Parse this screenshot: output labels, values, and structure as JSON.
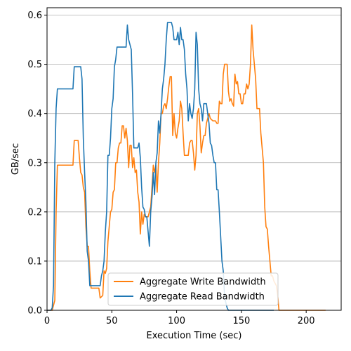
{
  "chart_data": {
    "type": "line",
    "xlabel": "Execution Time (sec)",
    "ylabel": "GB/sec",
    "xlim": [
      0,
      227
    ],
    "ylim": [
      0,
      0.615
    ],
    "xticks": [
      0,
      50,
      100,
      150,
      200
    ],
    "xtick_labels": [
      "0",
      "50",
      "100",
      "150",
      "200"
    ],
    "yticks": [
      0,
      0.1,
      0.2,
      0.3,
      0.4,
      0.5,
      0.6
    ],
    "ytick_labels": [
      "0.0",
      "0.1",
      "0.2",
      "0.3",
      "0.4",
      "0.5",
      "0.6"
    ],
    "grid": "horizontal",
    "legend_position": "lower-center",
    "series": [
      {
        "name": "Aggregate Write Bandwidth",
        "color": "#ff7f0e",
        "points": [
          [
            0,
            0
          ],
          [
            2,
            0
          ],
          [
            4,
            0
          ],
          [
            6,
            0.02
          ],
          [
            7,
            0.2
          ],
          [
            8,
            0.295
          ],
          [
            10,
            0.295
          ],
          [
            14,
            0.295
          ],
          [
            18,
            0.295
          ],
          [
            20,
            0.295
          ],
          [
            21,
            0.345
          ],
          [
            24,
            0.345
          ],
          [
            25,
            0.31
          ],
          [
            26,
            0.28
          ],
          [
            27,
            0.275
          ],
          [
            28,
            0.25
          ],
          [
            29,
            0.24
          ],
          [
            30,
            0.17
          ],
          [
            31,
            0.13
          ],
          [
            32,
            0.13
          ],
          [
            33,
            0.08
          ],
          [
            34,
            0.045
          ],
          [
            36,
            0.045
          ],
          [
            40,
            0.045
          ],
          [
            41,
            0.025
          ],
          [
            43,
            0.03
          ],
          [
            44,
            0.08
          ],
          [
            45,
            0.075
          ],
          [
            46,
            0.085
          ],
          [
            47,
            0.14
          ],
          [
            48,
            0.17
          ],
          [
            49,
            0.2
          ],
          [
            50,
            0.205
          ],
          [
            51,
            0.24
          ],
          [
            52,
            0.245
          ],
          [
            53,
            0.3
          ],
          [
            54,
            0.3
          ],
          [
            55,
            0.33
          ],
          [
            56,
            0.34
          ],
          [
            57,
            0.34
          ],
          [
            58,
            0.375
          ],
          [
            59,
            0.375
          ],
          [
            60,
            0.35
          ],
          [
            61,
            0.37
          ],
          [
            62,
            0.345
          ],
          [
            63,
            0.29
          ],
          [
            64,
            0.335
          ],
          [
            65,
            0.335
          ],
          [
            66,
            0.29
          ],
          [
            67,
            0.31
          ],
          [
            68,
            0.28
          ],
          [
            69,
            0.285
          ],
          [
            70,
            0.24
          ],
          [
            71,
            0.22
          ],
          [
            72,
            0.155
          ],
          [
            73,
            0.2
          ],
          [
            74,
            0.175
          ],
          [
            75,
            0.195
          ],
          [
            76,
            0.19
          ],
          [
            78,
            0.19
          ],
          [
            80,
            0.21
          ],
          [
            81,
            0.25
          ],
          [
            82,
            0.295
          ],
          [
            83,
            0.28
          ],
          [
            84,
            0.295
          ],
          [
            85,
            0.24
          ],
          [
            86,
            0.3
          ],
          [
            87,
            0.34
          ],
          [
            88,
            0.4
          ],
          [
            89,
            0.4
          ],
          [
            90,
            0.415
          ],
          [
            91,
            0.42
          ],
          [
            92,
            0.41
          ],
          [
            93,
            0.43
          ],
          [
            94,
            0.455
          ],
          [
            95,
            0.475
          ],
          [
            96,
            0.475
          ],
          [
            97,
            0.355
          ],
          [
            98,
            0.4
          ],
          [
            99,
            0.36
          ],
          [
            100,
            0.35
          ],
          [
            101,
            0.37
          ],
          [
            102,
            0.385
          ],
          [
            103,
            0.425
          ],
          [
            104,
            0.41
          ],
          [
            105,
            0.36
          ],
          [
            106,
            0.315
          ],
          [
            108,
            0.315
          ],
          [
            109,
            0.315
          ],
          [
            110,
            0.34
          ],
          [
            111,
            0.345
          ],
          [
            112,
            0.345
          ],
          [
            113,
            0.32
          ],
          [
            114,
            0.285
          ],
          [
            115,
            0.315
          ],
          [
            116,
            0.4
          ],
          [
            117,
            0.41
          ],
          [
            118,
            0.375
          ],
          [
            119,
            0.32
          ],
          [
            120,
            0.34
          ],
          [
            121,
            0.355
          ],
          [
            122,
            0.355
          ],
          [
            123,
            0.38
          ],
          [
            124,
            0.39
          ],
          [
            125,
            0.4
          ],
          [
            126,
            0.39
          ],
          [
            128,
            0.385
          ],
          [
            130,
            0.385
          ],
          [
            131,
            0.38
          ],
          [
            132,
            0.38
          ],
          [
            133,
            0.425
          ],
          [
            134,
            0.42
          ],
          [
            135,
            0.42
          ],
          [
            136,
            0.48
          ],
          [
            137,
            0.5
          ],
          [
            138,
            0.5
          ],
          [
            139,
            0.5
          ],
          [
            140,
            0.445
          ],
          [
            141,
            0.425
          ],
          [
            142,
            0.43
          ],
          [
            143,
            0.42
          ],
          [
            144,
            0.415
          ],
          [
            145,
            0.48
          ],
          [
            146,
            0.46
          ],
          [
            147,
            0.465
          ],
          [
            148,
            0.44
          ],
          [
            149,
            0.44
          ],
          [
            150,
            0.42
          ],
          [
            151,
            0.42
          ],
          [
            152,
            0.44
          ],
          [
            153,
            0.44
          ],
          [
            154,
            0.46
          ],
          [
            155,
            0.45
          ],
          [
            156,
            0.46
          ],
          [
            157,
            0.5
          ],
          [
            158,
            0.58
          ],
          [
            159,
            0.53
          ],
          [
            160,
            0.5
          ],
          [
            161,
            0.47
          ],
          [
            162,
            0.41
          ],
          [
            164,
            0.41
          ],
          [
            165,
            0.36
          ],
          [
            166,
            0.33
          ],
          [
            167,
            0.3
          ],
          [
            168,
            0.21
          ],
          [
            169,
            0.17
          ],
          [
            170,
            0.165
          ],
          [
            171,
            0.13
          ],
          [
            172,
            0.1
          ],
          [
            173,
            0.07
          ],
          [
            174,
            0.07
          ],
          [
            175,
            0.06
          ],
          [
            176,
            0.055
          ],
          [
            177,
            0.05
          ],
          [
            178,
            0.03
          ],
          [
            179,
            0
          ],
          [
            185,
            0
          ],
          [
            200,
            0
          ],
          [
            215,
            0
          ]
        ]
      },
      {
        "name": "Aggregate Read Bandwidth",
        "color": "#1f77b4",
        "points": [
          [
            0,
            0
          ],
          [
            3,
            0
          ],
          [
            4,
            0.005
          ],
          [
            5,
            0.05
          ],
          [
            6,
            0.3
          ],
          [
            7,
            0.41
          ],
          [
            8,
            0.45
          ],
          [
            10,
            0.45
          ],
          [
            15,
            0.45
          ],
          [
            18,
            0.45
          ],
          [
            20,
            0.45
          ],
          [
            21,
            0.495
          ],
          [
            25,
            0.495
          ],
          [
            26,
            0.495
          ],
          [
            27,
            0.47
          ],
          [
            28,
            0.35
          ],
          [
            29,
            0.28
          ],
          [
            30,
            0.22
          ],
          [
            31,
            0.12
          ],
          [
            32,
            0.1
          ],
          [
            33,
            0.05
          ],
          [
            35,
            0.05
          ],
          [
            40,
            0.05
          ],
          [
            41,
            0.05
          ],
          [
            42,
            0.07
          ],
          [
            43,
            0.08
          ],
          [
            44,
            0.1
          ],
          [
            45,
            0.16
          ],
          [
            46,
            0.2
          ],
          [
            47,
            0.315
          ],
          [
            48,
            0.315
          ],
          [
            49,
            0.35
          ],
          [
            50,
            0.41
          ],
          [
            51,
            0.43
          ],
          [
            52,
            0.495
          ],
          [
            53,
            0.51
          ],
          [
            54,
            0.535
          ],
          [
            56,
            0.535
          ],
          [
            58,
            0.535
          ],
          [
            60,
            0.535
          ],
          [
            61,
            0.535
          ],
          [
            62,
            0.58
          ],
          [
            63,
            0.55
          ],
          [
            64,
            0.54
          ],
          [
            65,
            0.53
          ],
          [
            66,
            0.44
          ],
          [
            67,
            0.33
          ],
          [
            68,
            0.33
          ],
          [
            69,
            0.33
          ],
          [
            70,
            0.33
          ],
          [
            71,
            0.34
          ],
          [
            72,
            0.31
          ],
          [
            73,
            0.25
          ],
          [
            74,
            0.21
          ],
          [
            75,
            0.205
          ],
          [
            76,
            0.19
          ],
          [
            77,
            0.19
          ],
          [
            78,
            0.16
          ],
          [
            79,
            0.13
          ],
          [
            80,
            0.2
          ],
          [
            81,
            0.23
          ],
          [
            82,
            0.28
          ],
          [
            83,
            0.235
          ],
          [
            84,
            0.3
          ],
          [
            85,
            0.32
          ],
          [
            86,
            0.385
          ],
          [
            87,
            0.36
          ],
          [
            88,
            0.4
          ],
          [
            89,
            0.45
          ],
          [
            90,
            0.47
          ],
          [
            91,
            0.5
          ],
          [
            92,
            0.55
          ],
          [
            93,
            0.585
          ],
          [
            94,
            0.585
          ],
          [
            95,
            0.585
          ],
          [
            96,
            0.585
          ],
          [
            97,
            0.575
          ],
          [
            98,
            0.55
          ],
          [
            99,
            0.55
          ],
          [
            100,
            0.55
          ],
          [
            101,
            0.565
          ],
          [
            102,
            0.54
          ],
          [
            103,
            0.575
          ],
          [
            104,
            0.55
          ],
          [
            105,
            0.55
          ],
          [
            106,
            0.53
          ],
          [
            107,
            0.48
          ],
          [
            108,
            0.45
          ],
          [
            109,
            0.385
          ],
          [
            110,
            0.42
          ],
          [
            111,
            0.4
          ],
          [
            112,
            0.39
          ],
          [
            113,
            0.41
          ],
          [
            114,
            0.45
          ],
          [
            115,
            0.565
          ],
          [
            116,
            0.54
          ],
          [
            117,
            0.45
          ],
          [
            118,
            0.42
          ],
          [
            119,
            0.41
          ],
          [
            120,
            0.385
          ],
          [
            121,
            0.42
          ],
          [
            122,
            0.42
          ],
          [
            123,
            0.42
          ],
          [
            124,
            0.4
          ],
          [
            125,
            0.38
          ],
          [
            126,
            0.34
          ],
          [
            127,
            0.335
          ],
          [
            128,
            0.315
          ],
          [
            129,
            0.3
          ],
          [
            130,
            0.3
          ],
          [
            131,
            0.245
          ],
          [
            132,
            0.245
          ],
          [
            133,
            0.2
          ],
          [
            134,
            0.15
          ],
          [
            135,
            0.1
          ],
          [
            136,
            0.08
          ],
          [
            137,
            0.03
          ],
          [
            138,
            0.015
          ],
          [
            139,
            0.005
          ],
          [
            140,
            0
          ],
          [
            150,
            0
          ],
          [
            160,
            0
          ],
          [
            170,
            0
          ],
          [
            175,
            0
          ]
        ]
      }
    ]
  }
}
